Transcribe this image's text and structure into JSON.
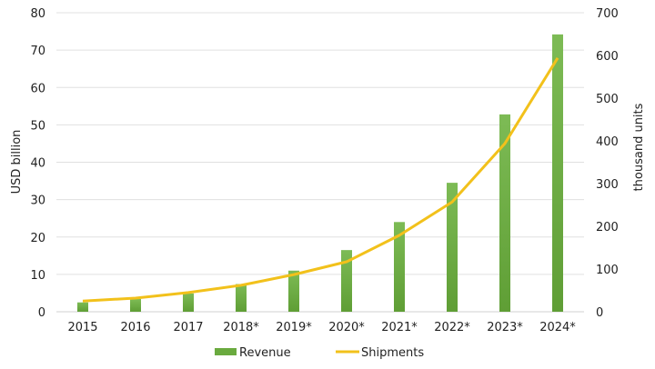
{
  "chart_data": {
    "type": "bar",
    "categories": [
      "2015",
      "2016",
      "2017",
      "2018*",
      "2019*",
      "2020*",
      "2021*",
      "2022*",
      "2023*",
      "2024*"
    ],
    "series": [
      {
        "name": "Revenue",
        "type": "bar",
        "axis": "left",
        "color": "#6aaa3f",
        "values": [
          2.5,
          3.4,
          4.9,
          7.4,
          11,
          16.5,
          24,
          34.5,
          52.8,
          74.2
        ]
      },
      {
        "name": "Shipments",
        "type": "line",
        "axis": "right",
        "color": "#f2c11b",
        "values": [
          25,
          32,
          45,
          62,
          87,
          117,
          179,
          257,
          394,
          594
        ]
      }
    ],
    "ylabel": "USD billion",
    "y2label": "thousand units",
    "ylim": [
      0,
      80
    ],
    "y2lim": [
      0,
      700
    ],
    "yticks": [
      "0",
      "10",
      "20",
      "30",
      "40",
      "50",
      "60",
      "70",
      "80"
    ],
    "y2ticks": [
      "0",
      "100",
      "200",
      "300",
      "400",
      "500",
      "600",
      "700"
    ],
    "grid": true,
    "legend": "bottom"
  }
}
